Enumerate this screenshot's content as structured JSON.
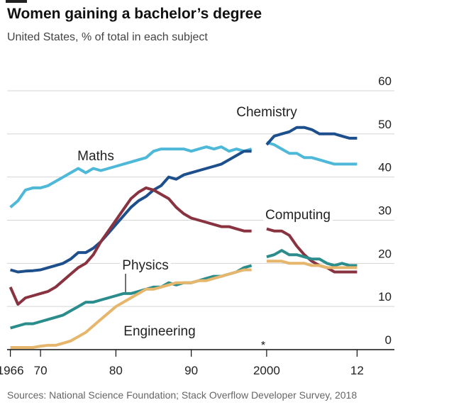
{
  "chart_data": {
    "type": "line",
    "title": "Women gaining a bachelor’s degree",
    "subtitle": "United States, % of total in each subject",
    "source": "Sources: National Science Foundation; Stack Overflow Developer Survey, 2018",
    "annotation": "*",
    "x": [
      1966,
      1967,
      1968,
      1969,
      1970,
      1971,
      1972,
      1973,
      1974,
      1975,
      1976,
      1977,
      1978,
      1979,
      1980,
      1981,
      1982,
      1983,
      1984,
      1985,
      1986,
      1987,
      1988,
      1989,
      1990,
      1991,
      1992,
      1993,
      1994,
      1995,
      1996,
      1997,
      1998,
      1999,
      2000,
      2001,
      2002,
      2003,
      2004,
      2005,
      2006,
      2007,
      2008,
      2009,
      2010,
      2011,
      2012
    ],
    "series": [
      {
        "name": "Maths",
        "color": "#4db8d8",
        "values": [
          33,
          34.5,
          37,
          37.5,
          37.5,
          38,
          39,
          40,
          41,
          42,
          41,
          42,
          41.5,
          42,
          42.5,
          43,
          43.5,
          44,
          44.5,
          46,
          46.5,
          46.5,
          46.5,
          46.5,
          46,
          46.5,
          47,
          46.5,
          47,
          46,
          46.5,
          46,
          46.5,
          null,
          48,
          47.5,
          46.5,
          45.5,
          45.5,
          44.5,
          44.5,
          44,
          43.5,
          43,
          43,
          43,
          43
        ]
      },
      {
        "name": "Chemistry",
        "color": "#1d4f8c",
        "values": [
          18.5,
          18,
          18.2,
          18.3,
          18.5,
          19,
          19.5,
          20,
          21,
          22.5,
          22.5,
          23.5,
          25,
          27,
          29,
          31,
          33,
          34.5,
          35.5,
          37,
          38,
          40,
          39.5,
          40.5,
          41,
          41.5,
          42,
          42.5,
          43,
          44,
          45,
          46,
          46,
          null,
          47.5,
          49.5,
          50,
          50.5,
          51.5,
          51.5,
          51,
          50,
          50,
          50,
          49.5,
          49,
          49
        ]
      },
      {
        "name": "Computing",
        "color": "#8a3340",
        "values": [
          14.5,
          10.5,
          12,
          12.5,
          13,
          13.5,
          14.5,
          16,
          17.5,
          19,
          20,
          22,
          25,
          27.5,
          30,
          32.5,
          35,
          36.5,
          37.5,
          37,
          36,
          35,
          33,
          31.5,
          30.5,
          30,
          29.5,
          29,
          28.5,
          28.5,
          28,
          27.5,
          27.5,
          null,
          28,
          27.5,
          27.5,
          26.5,
          24,
          22,
          20.5,
          19.5,
          19,
          18,
          18,
          18,
          18
        ]
      },
      {
        "name": "Physics",
        "color": "#2b8c8c",
        "values": [
          5,
          5.5,
          6,
          6,
          6.5,
          7,
          7.5,
          8,
          9,
          10,
          11,
          11,
          11.5,
          12,
          12.5,
          13,
          13,
          13.5,
          14,
          14.5,
          14.5,
          15.5,
          15,
          15.5,
          15.5,
          16,
          16.5,
          17,
          17,
          17.5,
          18,
          19,
          19.5,
          null,
          21.5,
          22,
          23,
          22,
          22,
          21.5,
          21,
          21,
          20,
          19.5,
          20,
          19.5,
          19.5
        ]
      },
      {
        "name": "Engineering",
        "color": "#e6b66c",
        "values": [
          0.5,
          0.5,
          0.5,
          0.5,
          0.8,
          1,
          1,
          1.5,
          2,
          3,
          4,
          5.5,
          7,
          8.5,
          10,
          11,
          12,
          13,
          14,
          14,
          14.5,
          15,
          15.5,
          15.5,
          15.5,
          16,
          16,
          16.5,
          17,
          17.5,
          18,
          18.5,
          18.5,
          null,
          20.5,
          20.5,
          20.5,
          20,
          20,
          20,
          19.5,
          19.5,
          19,
          19,
          19,
          19,
          19
        ]
      }
    ],
    "xlim": [
      1965,
      2013
    ],
    "xticks": [
      1966,
      {
        "value": 1970,
        "label": "70"
      },
      {
        "value": 1980,
        "label": "80"
      },
      {
        "value": 1990,
        "label": "90"
      },
      2000,
      {
        "value": 2012,
        "label": "12"
      }
    ],
    "ylim": [
      0,
      60
    ],
    "yticks": [
      0,
      10,
      20,
      30,
      40,
      50,
      60
    ],
    "y_axis_side": "right",
    "grid": true
  }
}
